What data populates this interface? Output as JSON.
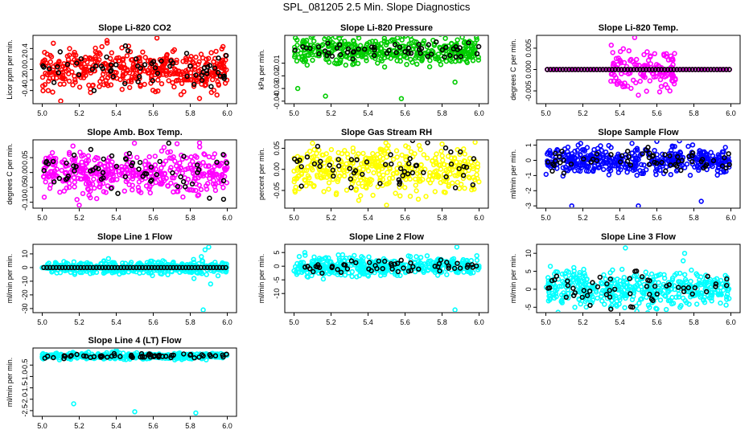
{
  "page": {
    "title": "SPL_081205  2.5 Min. Slope Diagnostics"
  },
  "colors": {
    "red": "#ff0000",
    "green": "#00cc00",
    "magenta": "#ff00ff",
    "yellow": "#ffff00",
    "blue": "#0000ff",
    "cyan": "#00ffff",
    "black": "#000000"
  },
  "chart_data": [
    {
      "id": "co2",
      "type": "scatter",
      "title": "Slope Li-820 CO2",
      "ylabel": "Licor ppm per min.",
      "xlim": [
        4.95,
        6.05
      ],
      "ylim": [
        -0.65,
        0.65
      ],
      "xticks": [
        "5.0",
        "5.2",
        "5.4",
        "5.6",
        "5.8",
        "6.0"
      ],
      "yticks": [
        -0.4,
        -0.2,
        0.0,
        0.2,
        0.4
      ],
      "ytick_labels": [
        "-0.4",
        "-0.2",
        "0.0",
        "0.2",
        "0.4"
      ],
      "series": [
        {
          "color": "red",
          "n": 420,
          "spread": 0.19,
          "outliers": [
            [
              5.1,
              -0.6
            ],
            [
              5.35,
              0.55
            ],
            [
              5.62,
              0.6
            ],
            [
              5.85,
              -0.55
            ],
            [
              5.06,
              0.5
            ]
          ]
        },
        {
          "color": "black",
          "n": 60,
          "spread": 0.16,
          "outliers": [
            [
              5.45,
              0.45
            ],
            [
              5.28,
              -0.4
            ]
          ]
        }
      ]
    },
    {
      "id": "pressure",
      "type": "scatter",
      "title": "Slope Li-820 Pressure",
      "ylabel": "kPa per min.",
      "xlim": [
        4.95,
        6.05
      ],
      "ylim": [
        -0.042,
        0.012
      ],
      "xticks": [
        "5.0",
        "5.2",
        "5.4",
        "5.6",
        "5.8",
        "6.0"
      ],
      "yticks": [
        -0.04,
        -0.03,
        -0.02,
        -0.01
      ],
      "ytick_labels": [
        "-0.04",
        "-0.03",
        "-0.02",
        "-0.01"
      ],
      "series": [
        {
          "color": "green",
          "n": 400,
          "spread": 0.0055,
          "outliers": [
            [
              5.17,
              -0.036
            ],
            [
              5.02,
              -0.03
            ],
            [
              5.87,
              -0.025
            ],
            [
              5.58,
              -0.038
            ]
          ]
        },
        {
          "color": "black",
          "n": 55,
          "spread": 0.004,
          "outliers": []
        }
      ]
    },
    {
      "id": "temp",
      "type": "scatter",
      "title": "Slope Li-820 Temp.",
      "ylabel": "degrees C per min.",
      "xlim": [
        4.95,
        6.05
      ],
      "ylim": [
        -0.008,
        0.008
      ],
      "xticks": [
        "5.0",
        "5.2",
        "5.4",
        "5.6",
        "5.8",
        "6.0"
      ],
      "yticks": [
        -0.005,
        0.0,
        0.005
      ],
      "ytick_labels": [
        "-0.005",
        "0.000",
        "0.005"
      ],
      "series": [
        {
          "color": "magenta",
          "n": 140,
          "spread": 0.0025,
          "xrange": [
            5.35,
            5.7
          ],
          "outliers": [
            [
              5.48,
              0.0075
            ],
            [
              5.5,
              -0.006
            ]
          ]
        },
        {
          "color": "magenta",
          "n": 70,
          "spread": 0.0,
          "outliers": []
        },
        {
          "color": "black",
          "n": 60,
          "spread": 0.0,
          "outliers": []
        }
      ]
    },
    {
      "id": "boxtemp",
      "type": "scatter",
      "title": "Slope Amb. Box Temp.",
      "ylabel": "degrees C per min.",
      "xlim": [
        4.95,
        6.05
      ],
      "ylim": [
        -0.12,
        0.11
      ],
      "xticks": [
        "5.0",
        "5.2",
        "5.4",
        "5.6",
        "5.8",
        "6.0"
      ],
      "yticks": [
        -0.1,
        -0.05,
        0.0,
        0.05
      ],
      "ytick_labels": [
        "-0.10",
        "-0.05",
        "0.00",
        "0.05"
      ],
      "series": [
        {
          "color": "magenta",
          "n": 420,
          "spread": 0.035,
          "outliers": [
            [
              5.85,
              0.1
            ],
            [
              5.2,
              -0.11
            ]
          ]
        },
        {
          "color": "black",
          "n": 60,
          "spread": 0.035,
          "outliers": [
            [
              5.98,
              -0.09
            ]
          ]
        }
      ]
    },
    {
      "id": "rh",
      "type": "scatter",
      "title": "Slope Gas Stream RH",
      "ylabel": "percent per min.",
      "xlim": [
        4.95,
        6.05
      ],
      "ylim": [
        -0.092,
        0.07
      ],
      "xticks": [
        "5.0",
        "5.2",
        "5.4",
        "5.6",
        "5.8",
        "6.0"
      ],
      "yticks": [
        -0.05,
        0.0,
        0.05
      ],
      "ytick_labels": [
        "-0.05",
        "0.00",
        "0.05"
      ],
      "series": [
        {
          "color": "yellow",
          "n": 400,
          "spread": 0.028,
          "outliers": [
            [
              5.5,
              -0.085
            ],
            [
              5.1,
              0.062
            ],
            [
              5.8,
              0.06
            ]
          ]
        },
        {
          "color": "black",
          "n": 55,
          "spread": 0.025,
          "outliers": []
        }
      ]
    },
    {
      "id": "sampleflow",
      "type": "scatter",
      "title": "Slope Sample Flow",
      "ylabel": "ml/min per min.",
      "xlim": [
        4.95,
        6.05
      ],
      "ylim": [
        -3.15,
        1.35
      ],
      "xticks": [
        "5.0",
        "5.2",
        "5.4",
        "5.6",
        "5.8",
        "6.0"
      ],
      "yticks": [
        -3,
        -2,
        -1,
        0,
        1
      ],
      "ytick_labels": [
        "-3",
        "-2",
        "-1",
        "0",
        "1"
      ],
      "series": [
        {
          "color": "blue",
          "n": 420,
          "spread": 0.45,
          "outliers": [
            [
              5.14,
              -3.0
            ],
            [
              5.5,
              -3.0
            ],
            [
              5.84,
              -2.7
            ],
            [
              5.6,
              1.25
            ]
          ]
        },
        {
          "color": "black",
          "n": 60,
          "spread": 0.4,
          "outliers": []
        }
      ]
    },
    {
      "id": "line1",
      "type": "scatter",
      "title": "Slope Line 1 Flow",
      "ylabel": "ml/min per min.",
      "xlim": [
        4.95,
        6.05
      ],
      "ylim": [
        -33,
        17
      ],
      "xticks": [
        "5.0",
        "5.2",
        "5.4",
        "5.6",
        "5.8",
        "6.0"
      ],
      "yticks": [
        -30,
        -20,
        -10,
        0,
        10
      ],
      "ytick_labels": [
        "-30",
        "-20",
        "-10",
        "0",
        "10"
      ],
      "series": [
        {
          "color": "cyan",
          "n": 400,
          "spread": 2.2,
          "outliers": [
            [
              5.87,
              -31
            ],
            [
              5.88,
              13
            ],
            [
              5.9,
              15
            ],
            [
              5.82,
              -8
            ],
            [
              5.86,
              8
            ],
            [
              5.95,
              -6
            ],
            [
              5.91,
              -12
            ]
          ]
        },
        {
          "color": "black",
          "n": 60,
          "spread": 0.0,
          "outliers": []
        }
      ]
    },
    {
      "id": "line2",
      "type": "scatter",
      "title": "Slope Line 2 Flow",
      "ylabel": "ml/min per min.",
      "xlim": [
        4.95,
        6.05
      ],
      "ylim": [
        -17,
        8
      ],
      "xticks": [
        "5.0",
        "5.2",
        "5.4",
        "5.6",
        "5.8",
        "6.0"
      ],
      "yticks": [
        -10,
        -5,
        0,
        5
      ],
      "ytick_labels": [
        "-10",
        "-5",
        "0",
        "5"
      ],
      "series": [
        {
          "color": "cyan",
          "n": 420,
          "spread": 1.7,
          "outliers": [
            [
              5.87,
              -16
            ],
            [
              5.88,
              7
            ],
            [
              5.06,
              4
            ]
          ]
        },
        {
          "color": "black",
          "n": 55,
          "spread": 1.3,
          "outliers": []
        }
      ]
    },
    {
      "id": "line3",
      "type": "scatter",
      "title": "Slope Line 3 Flow",
      "ylabel": "ml/min per min.",
      "xlim": [
        4.95,
        6.05
      ],
      "ylim": [
        -6.5,
        12.5
      ],
      "xticks": [
        "5.0",
        "5.2",
        "5.4",
        "5.6",
        "5.8",
        "6.0"
      ],
      "yticks": [
        -5,
        0,
        5,
        10
      ],
      "ytick_labels": [
        "-5",
        "0",
        "5",
        "10"
      ],
      "series": [
        {
          "color": "cyan",
          "n": 440,
          "spread": 2.6,
          "outliers": [
            [
              5.43,
              11.5
            ],
            [
              5.75,
              10
            ],
            [
              5.6,
              -5.5
            ]
          ]
        },
        {
          "color": "black",
          "n": 55,
          "spread": 2.2,
          "outliers": []
        }
      ]
    },
    {
      "id": "line4",
      "type": "scatter",
      "title": "Slope Line 4 (LT) Flow",
      "ylabel": "ml/min per min.",
      "xlim": [
        4.95,
        6.05
      ],
      "ylim": [
        -2.75,
        0.25
      ],
      "xticks": [
        "5.0",
        "5.2",
        "5.4",
        "5.6",
        "5.8",
        "6.0"
      ],
      "yticks": [
        -2.5,
        -2.0,
        -1.5,
        -1.0,
        -0.5
      ],
      "ytick_labels": [
        "-2.5",
        "-2.0",
        "-1.5",
        "-1.0",
        "-0.5"
      ],
      "series": [
        {
          "color": "cyan",
          "n": 400,
          "spread": 0.07,
          "outliers": [
            [
              5.17,
              -2.2
            ],
            [
              5.5,
              -2.55
            ],
            [
              5.83,
              -2.6
            ],
            [
              5.4,
              0.15
            ]
          ]
        },
        {
          "color": "black",
          "n": 60,
          "spread": 0.05,
          "outliers": []
        }
      ]
    }
  ]
}
